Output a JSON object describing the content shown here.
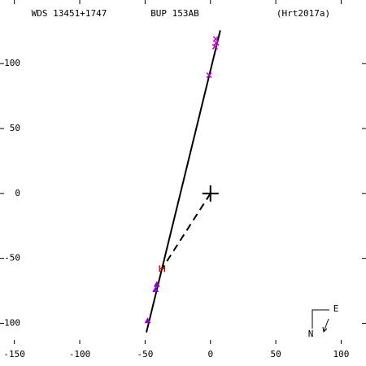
{
  "chart_data": {
    "type": "scatter",
    "labels": [
      "WDS 13451+1747",
      "BUP 153AB",
      "(Hrt2017a)"
    ],
    "compass": {
      "north": "N",
      "east": "E"
    },
    "xlim": [
      -161,
      119
    ],
    "ylim": [
      -116,
      149
    ],
    "xticks": [
      -150,
      -100,
      -50,
      0,
      50,
      100
    ],
    "yticks": [
      -100,
      -50,
      0,
      50,
      100
    ],
    "series": [
      {
        "style": "line",
        "color": "#000000",
        "x": [
          -49,
          7.5
        ],
        "y": [
          -107,
          125.6
        ]
      },
      {
        "style": "marker",
        "marker": "x",
        "color": "#cc00cc",
        "x": [
          4,
          4.5,
          3.5,
          -1
        ],
        "y": [
          119,
          116,
          113,
          91
        ]
      },
      {
        "style": "marker",
        "marker": "triangle",
        "color": "#8800cc",
        "x": [
          -41,
          -42,
          -48
        ],
        "y": [
          -70,
          -74,
          -98
        ]
      },
      {
        "style": "marker",
        "marker": "H",
        "color": "#dd0000",
        "x": [
          -37
        ],
        "y": [
          -58
        ]
      }
    ]
  }
}
